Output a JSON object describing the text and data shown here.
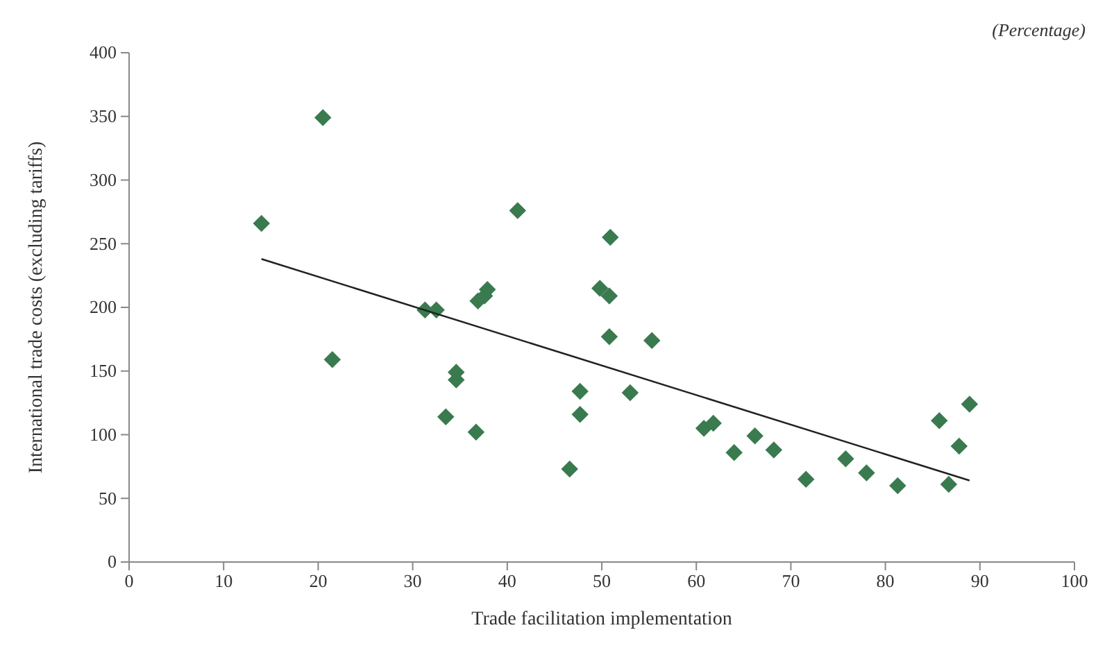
{
  "chart_data": {
    "type": "scatter",
    "xlabel": "Trade facilitation implementation",
    "ylabel": "International trade costs (excluding tariffs)",
    "annotations": [
      "(Percentage)"
    ],
    "xlim": [
      0,
      100
    ],
    "xticks": [
      0,
      10,
      20,
      30,
      40,
      50,
      60,
      70,
      80,
      90,
      100
    ],
    "ylim": [
      0,
      400
    ],
    "yticks": [
      0,
      50,
      100,
      150,
      200,
      250,
      300,
      350,
      400
    ],
    "grid": false,
    "series": [
      {
        "marker": "diamond",
        "color": "#3a7a4f",
        "x": [
          14.0,
          20.5,
          21.5,
          31.3,
          32.5,
          34.6,
          34.6,
          33.5,
          36.7,
          36.9,
          37.6,
          37.9,
          41.1,
          49.8,
          50.8,
          50.9,
          50.8,
          55.3,
          46.6,
          47.7,
          47.7,
          53.0,
          60.8,
          61.8,
          64.0,
          66.2,
          68.2,
          71.6,
          75.8,
          78.0,
          81.3,
          85.7,
          86.7,
          87.8,
          88.9
        ],
        "values": [
          266,
          349,
          159,
          198,
          198,
          149,
          143,
          114,
          102,
          205,
          209,
          214,
          276,
          215,
          209,
          255,
          177,
          174,
          73,
          134,
          116,
          133,
          105,
          109,
          86,
          99,
          88,
          65,
          81,
          70,
          60,
          111,
          61,
          91,
          124
        ]
      },
      {
        "type": "line",
        "color": "#222222",
        "x": [
          14.0,
          88.9
        ],
        "values": [
          238,
          64
        ]
      }
    ]
  }
}
